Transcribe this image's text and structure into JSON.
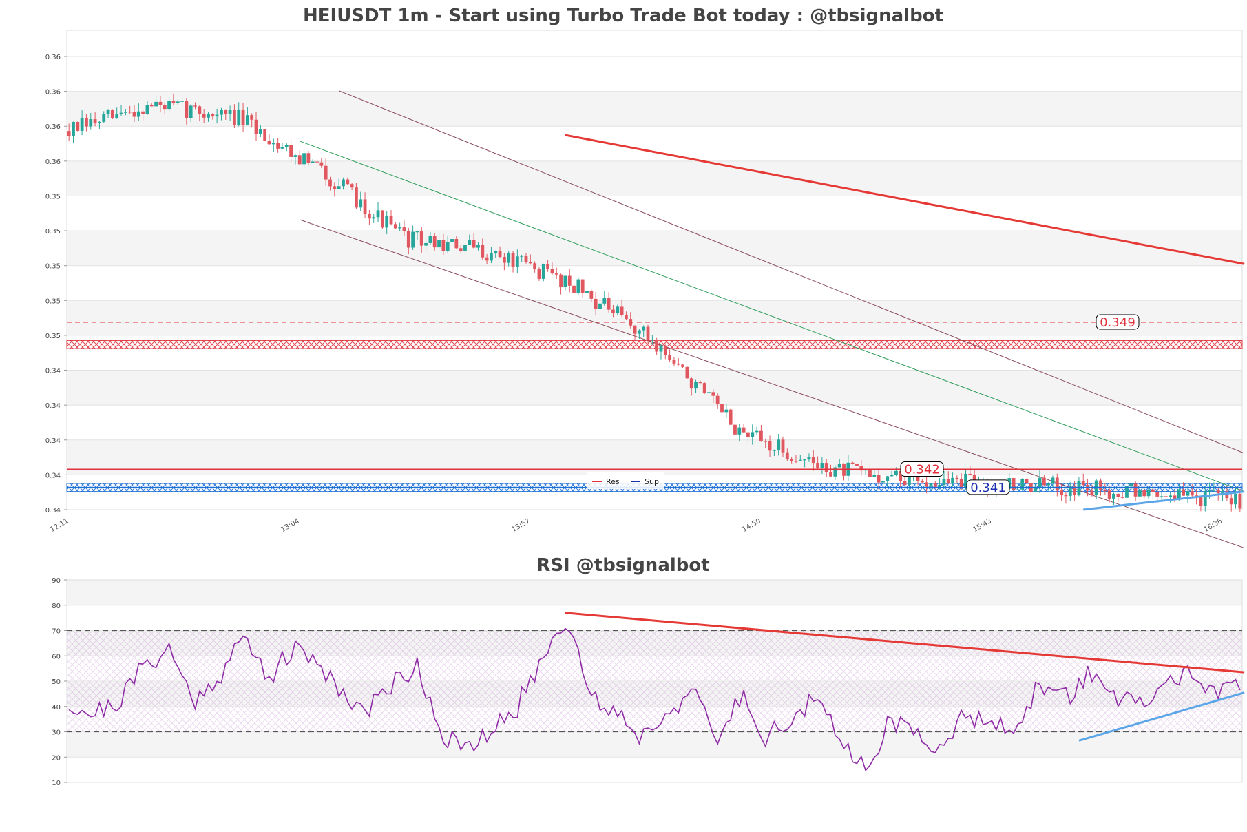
{
  "colors": {
    "up": "#26a69a",
    "down": "#e0575f",
    "res_zone": "#e0303a",
    "sup_zone": "#1b6fd6",
    "trend_red": "#e53935",
    "trend_blue": "#5aa5e8",
    "channel_green": "#2e9d5a",
    "channel_brown": "#8a4b5a",
    "rsi_line": "#8e2ba5",
    "grid_band": "#f4f4f4",
    "title_text": "#444444"
  },
  "chart_data": [
    {
      "type": "candlestick",
      "title": "HEIUSDT 1m - Start using Turbo Trade Bot today : @tbsignalbot",
      "x_tick_labels": [
        "12:11",
        "13:04",
        "13:57",
        "14:50",
        "15:43",
        "16:36"
      ],
      "y_tick_labels": [
        "0.36",
        "0.36",
        "0.36",
        "0.36",
        "0.35",
        "0.35",
        "0.35",
        "0.35",
        "0.35",
        "0.34",
        "0.34",
        "0.34",
        "0.34",
        "0.34"
      ],
      "ylim": [
        0.3397,
        0.3635
      ],
      "legend": {
        "placement": "bottom-center",
        "entries": [
          "Res",
          "Sup"
        ]
      },
      "bars_count": 270,
      "key_prices": [
        0.3585,
        0.3598,
        0.3592,
        0.3566,
        0.3532,
        0.3525,
        0.351,
        0.348,
        0.3436,
        0.3418,
        0.3412,
        0.341,
        0.3408,
        0.3405,
        0.3402
      ],
      "resistance_lines": [
        {
          "label": "0.349",
          "value": 0.349,
          "style": "dashed"
        },
        {
          "label": "0.342",
          "value": 0.3417,
          "style": "solid"
        }
      ],
      "resistance_zone": [
        0.3477,
        0.3481
      ],
      "support_lines": [
        {
          "label": "0.341",
          "value": 0.3408
        }
      ],
      "support_zone": [
        0.3406,
        0.341
      ],
      "trendlines": [
        {
          "name": "down-trend",
          "from": [
            114,
            0.3583
          ],
          "to": [
            270,
            0.3519
          ]
        },
        {
          "name": "up-trend",
          "from": [
            233,
            0.3397
          ],
          "to": [
            270,
            0.3406
          ]
        }
      ],
      "channel": {
        "upper": {
          "from": [
            62,
            0.3605
          ],
          "to": [
            270,
            0.3425
          ]
        },
        "middle": {
          "from": [
            53,
            0.358
          ],
          "to": [
            270,
            0.3406
          ]
        },
        "lower": {
          "from": [
            53,
            0.3541
          ],
          "to": [
            270,
            0.3378
          ]
        }
      }
    },
    {
      "type": "line",
      "title": "RSI @tbsignalbot",
      "y_tick_labels": [
        "90",
        "80",
        "70",
        "60",
        "50",
        "40",
        "30",
        "20",
        "10"
      ],
      "ylim": [
        10,
        90
      ],
      "overbought": 70,
      "oversold": 30,
      "key_values": [
        41,
        37,
        42,
        56,
        63,
        42,
        52,
        67,
        52,
        62,
        58,
        45,
        38,
        50,
        56,
        29,
        22,
        30,
        40,
        59,
        76,
        43,
        38,
        28,
        38,
        46,
        26,
        45,
        28,
        35,
        43,
        25,
        17,
        35,
        28,
        25,
        36,
        37,
        27,
        50,
        43,
        54,
        44,
        40,
        48,
        55,
        43,
        49
      ],
      "trendlines": [
        {
          "name": "rsi-down-trend",
          "from": [
            114,
            77
          ],
          "to": [
            270,
            53.5
          ]
        },
        {
          "name": "rsi-up-trend",
          "from": [
            232,
            26.5
          ],
          "to": [
            270,
            45.5
          ]
        }
      ]
    }
  ]
}
